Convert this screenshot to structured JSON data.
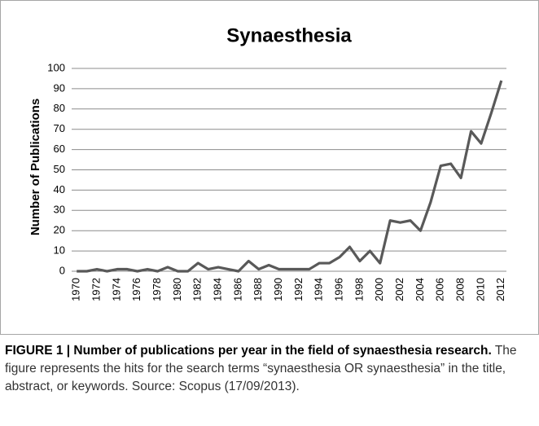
{
  "chart_data": {
    "type": "line",
    "title": "Synaesthesia",
    "y_label": "Number of Publications",
    "categories": [
      "1970",
      null,
      "1972",
      null,
      "1974",
      null,
      "1976",
      null,
      "1978",
      null,
      "1980",
      null,
      "1982",
      null,
      "1984",
      null,
      "1986",
      null,
      "1988",
      null,
      "1990",
      null,
      "1992",
      null,
      "1994",
      null,
      "1996",
      null,
      "1998",
      null,
      "2000",
      null,
      "2002",
      null,
      "2004",
      null,
      "2006",
      null,
      "2008",
      null,
      "2010",
      null,
      "2012"
    ],
    "values": [
      0,
      0,
      1,
      0,
      1,
      1,
      0,
      1,
      0,
      2,
      0,
      0,
      4,
      1,
      2,
      1,
      0,
      5,
      1,
      3,
      1,
      1,
      1,
      1,
      4,
      4,
      7,
      12,
      5,
      10,
      4,
      25,
      24,
      25,
      20,
      34,
      52,
      53,
      46,
      69,
      63,
      78,
      94
    ],
    "color": "#595959",
    "ylim": [
      0,
      100
    ],
    "yticks": [
      0,
      10,
      20,
      30,
      40,
      50,
      60,
      70,
      80,
      90,
      100
    ],
    "grid": true
  },
  "caption": {
    "bold": "FIGURE 1 | Number of publications per year in the field of synaesthesia research.",
    "text": "The figure represents the hits for the search terms “synaesthesia OR synaesthesia” in the title, abstract, or keywords. Source: Scopus (17/09/2013)."
  }
}
